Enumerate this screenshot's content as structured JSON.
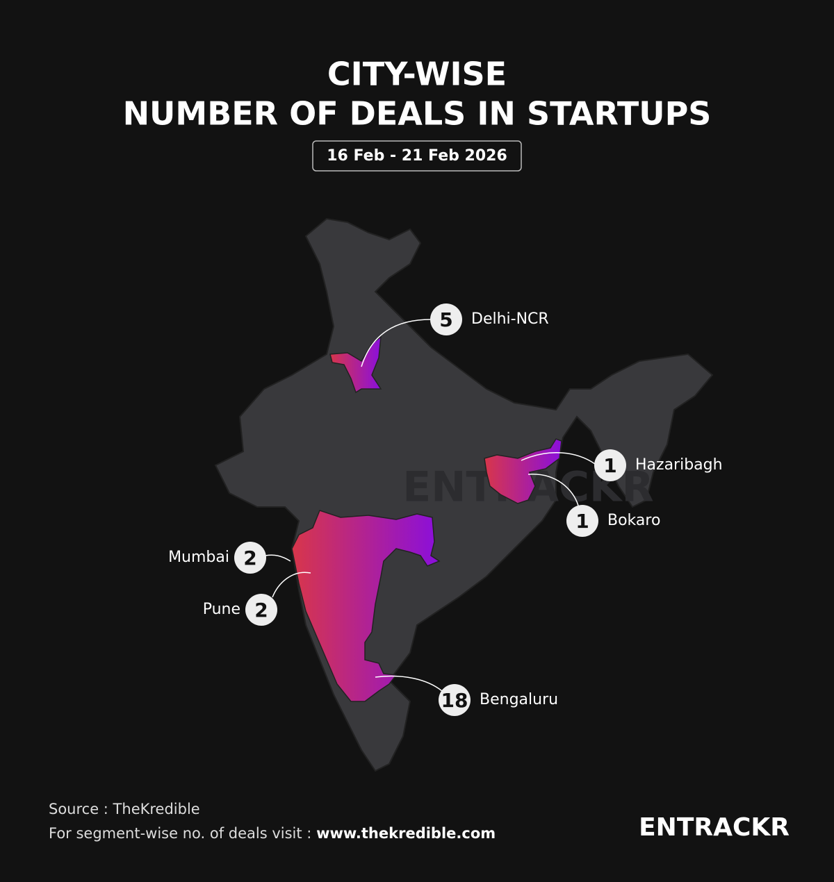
{
  "title": {
    "line1": "CITY-WISE",
    "line2": "NUMBER OF DEALS IN STARTUPS"
  },
  "date_range": "16 Feb - 21 Feb 2026",
  "cities": [
    {
      "name": "Delhi-NCR",
      "deals": 5
    },
    {
      "name": "Hazaribagh",
      "deals": 1
    },
    {
      "name": "Bokaro",
      "deals": 1
    },
    {
      "name": "Mumbai",
      "deals": 2
    },
    {
      "name": "Pune",
      "deals": 2
    },
    {
      "name": "Bengaluru",
      "deals": 18
    }
  ],
  "footer": {
    "source": "Source : TheKredible",
    "visit_text": "For segment-wise no. of deals visit :",
    "url": "www.thekredible.com"
  },
  "brand": "ENTRACKR"
}
